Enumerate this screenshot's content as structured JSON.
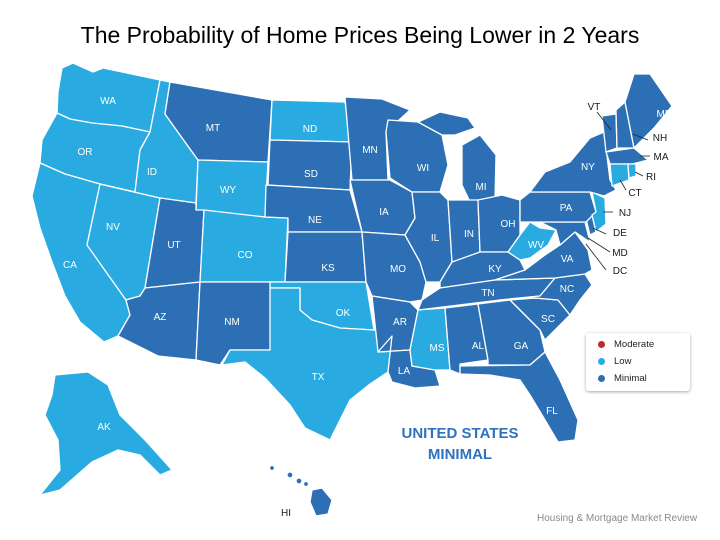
{
  "title": "The Probability of Home Prices Being Lower in 2 Years",
  "colors": {
    "low": "#29abe2",
    "minimal": "#2c6fb4",
    "moderate": "#c1272d",
    "border": "#ffffff"
  },
  "legend": [
    {
      "label": "Moderate",
      "color": "#c1272d"
    },
    {
      "label": "Low",
      "color": "#29abe2"
    },
    {
      "label": "Minimal",
      "color": "#2c6fb4"
    }
  ],
  "summary": {
    "line1": "UNITED STATES",
    "line2": "MINIMAL"
  },
  "source": "Housing & Mortgage Market Review",
  "states": {
    "WA": "low",
    "OR": "low",
    "CA": "low",
    "NV": "low",
    "ID": "low",
    "WY": "low",
    "CO": "low",
    "OK": "low",
    "TX": "low",
    "ND": "low",
    "MS": "low",
    "WV": "low",
    "NJ": "low",
    "CT": "low",
    "RI": "low",
    "AK": "low",
    "MT": "minimal",
    "UT": "minimal",
    "AZ": "minimal",
    "NM": "minimal",
    "SD": "minimal",
    "NE": "minimal",
    "KS": "minimal",
    "MN": "minimal",
    "IA": "minimal",
    "MO": "minimal",
    "AR": "minimal",
    "LA": "minimal",
    "WI": "minimal",
    "IL": "minimal",
    "MI": "minimal",
    "IN": "minimal",
    "OH": "minimal",
    "KY": "minimal",
    "TN": "minimal",
    "AL": "minimal",
    "GA": "minimal",
    "FL": "minimal",
    "SC": "minimal",
    "NC": "minimal",
    "VA": "minimal",
    "PA": "minimal",
    "NY": "minimal",
    "VT": "minimal",
    "NH": "minimal",
    "ME": "minimal",
    "MA": "minimal",
    "DE": "minimal",
    "MD": "minimal",
    "DC": "minimal",
    "HI": "minimal"
  }
}
